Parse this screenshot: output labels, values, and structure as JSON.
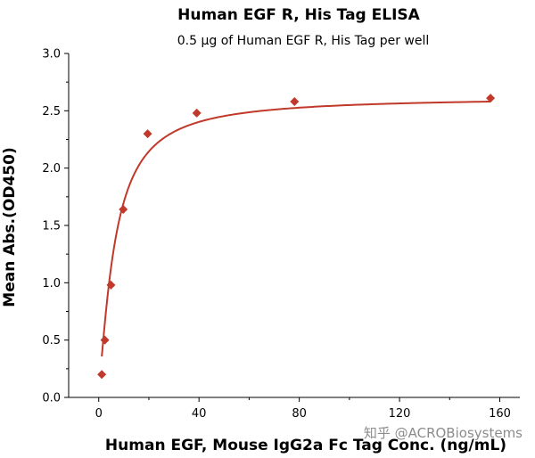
{
  "chart_data": {
    "type": "scatter",
    "title": "Human EGF R, His Tag ELISA",
    "subtitle": "0.5 µg of Human EGF R, His Tag per well",
    "xlabel": "Human EGF, Mouse IgG2a Fc Tag Conc. (ng/mL)",
    "ylabel": "Mean Abs.(OD450)",
    "xlim": [
      -12,
      168
    ],
    "ylim": [
      0,
      3.0
    ],
    "x_ticks": [
      "0",
      "40",
      "80",
      "120",
      "160"
    ],
    "y_ticks": [
      "0.0",
      "0.5",
      "1.0",
      "1.5",
      "2.0",
      "2.5",
      "3.0"
    ],
    "x_tick_values": [
      0,
      40,
      80,
      120,
      160
    ],
    "y_tick_values": [
      0,
      0.5,
      1.0,
      1.5,
      2.0,
      2.5,
      3.0
    ],
    "grid": false,
    "legend": "none",
    "marker": "diamond",
    "color": "#c0392b",
    "series": [
      {
        "x": [
          1.22,
          2.44,
          4.88,
          9.77,
          19.5,
          39.1,
          78.1,
          156.3
        ],
        "y": [
          0.2,
          0.5,
          0.98,
          1.64,
          2.3,
          2.48,
          2.58,
          2.61
        ]
      }
    ],
    "fit_curve": {
      "model": "4PL",
      "bottom": 0.1,
      "top": 2.62,
      "ec50": 6.5,
      "hill": 1.3
    }
  },
  "watermark": "知乎 @ACROBiosystems"
}
